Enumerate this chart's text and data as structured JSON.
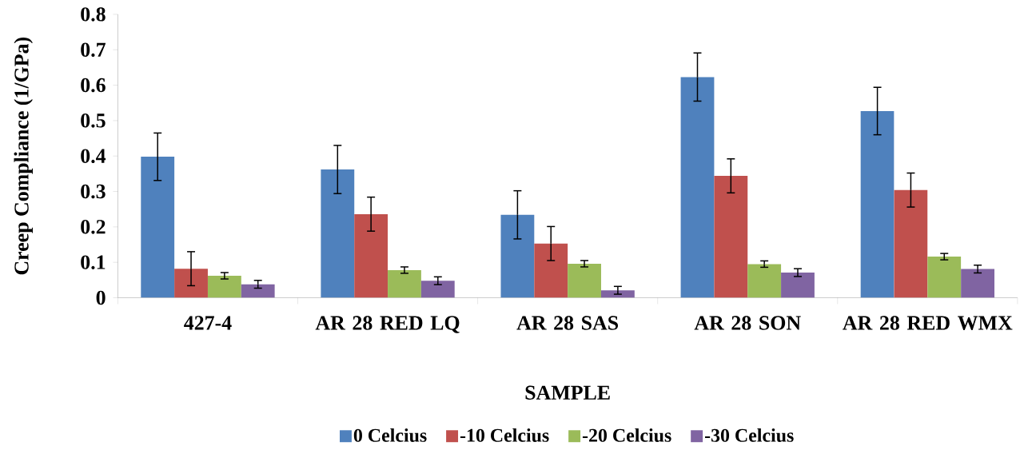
{
  "chart_data": {
    "type": "bar",
    "xlabel": "SAMPLE",
    "ylabel": "Creep Compliance (1/GPa)",
    "categories": [
      "427-4",
      "AR 28 RED LQ",
      "AR 28 SAS",
      "AR 28 SON",
      "AR 28 RED WMX"
    ],
    "series": [
      {
        "name": "0 Celcius",
        "color": "#4f81bd",
        "values": [
          0.398,
          0.362,
          0.234,
          0.623,
          0.527
        ],
        "errors": [
          0.067,
          0.068,
          0.068,
          0.068,
          0.067
        ]
      },
      {
        "name": "-10 Celcius",
        "color": "#c0504d",
        "values": [
          0.082,
          0.236,
          0.153,
          0.344,
          0.304
        ],
        "errors": [
          0.048,
          0.048,
          0.048,
          0.048,
          0.048
        ]
      },
      {
        "name": "-20 Celcius",
        "color": "#9bbb59",
        "values": [
          0.062,
          0.078,
          0.096,
          0.095,
          0.116
        ],
        "errors": [
          0.009,
          0.009,
          0.009,
          0.009,
          0.009
        ]
      },
      {
        "name": "-30 Celcius",
        "color": "#8064a2",
        "values": [
          0.038,
          0.048,
          0.021,
          0.071,
          0.081
        ],
        "errors": [
          0.011,
          0.011,
          0.011,
          0.011,
          0.011
        ]
      }
    ],
    "ylim": [
      0,
      0.8
    ],
    "yticks": [
      0,
      0.1,
      0.2,
      0.3,
      0.4,
      0.5,
      0.6,
      0.7,
      0.8
    ],
    "legend": "bottom",
    "grid": false
  }
}
